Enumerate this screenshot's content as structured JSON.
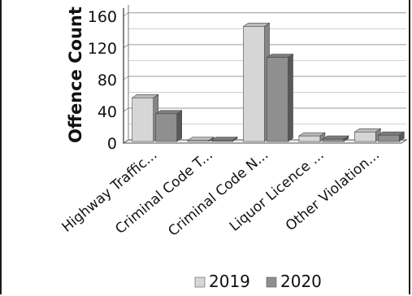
{
  "chart_data": {
    "type": "bar",
    "title": "",
    "xlabel": "",
    "ylabel": "Offence Count",
    "ylim": [
      0,
      170
    ],
    "yticks": [
      0,
      40,
      80,
      120,
      160
    ],
    "categories": [
      "Highway Traffic...",
      "Criminal Code T...",
      "Criminal Code N...",
      "Liquor Licence ...",
      "Other Violation..."
    ],
    "series": [
      {
        "name": "2019",
        "values": [
          55,
          1,
          145,
          7,
          12
        ],
        "color": "#d6d6d6"
      },
      {
        "name": "2020",
        "values": [
          35,
          1,
          106,
          3,
          8
        ],
        "color": "#8f8f8f"
      }
    ],
    "grid": true,
    "legend": "bottom"
  }
}
